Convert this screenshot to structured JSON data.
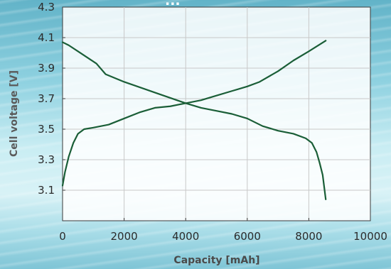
{
  "chart_data": {
    "type": "line",
    "title": "...",
    "xlabel": "Capacity [mAh]",
    "ylabel": "Cell voltage [V]",
    "xlim": [
      0,
      10000
    ],
    "ylim": [
      2.9,
      4.3
    ],
    "xticks": [
      0,
      2000,
      4000,
      6000,
      8000,
      10000
    ],
    "yticks": [
      3.1,
      3.3,
      3.5,
      3.7,
      3.9,
      4.1,
      4.3
    ],
    "grid": true,
    "series": [
      {
        "color": "#1a5e37",
        "points": [
          [
            0,
            4.07
          ],
          [
            200,
            4.05
          ],
          [
            500,
            4.01
          ],
          [
            800,
            3.97
          ],
          [
            1100,
            3.93
          ],
          [
            1400,
            3.86
          ],
          [
            2000,
            3.81
          ],
          [
            3000,
            3.74
          ],
          [
            4000,
            3.67
          ],
          [
            4500,
            3.64
          ],
          [
            5000,
            3.62
          ],
          [
            5500,
            3.6
          ],
          [
            6000,
            3.57
          ],
          [
            6500,
            3.52
          ],
          [
            7000,
            3.49
          ],
          [
            7500,
            3.47
          ],
          [
            7900,
            3.44
          ],
          [
            8100,
            3.41
          ],
          [
            8250,
            3.35
          ],
          [
            8350,
            3.28
          ],
          [
            8450,
            3.2
          ],
          [
            8500,
            3.12
          ],
          [
            8550,
            3.04
          ]
        ]
      },
      {
        "color": "#1a5e37",
        "points": [
          [
            0,
            3.13
          ],
          [
            80,
            3.22
          ],
          [
            200,
            3.32
          ],
          [
            350,
            3.41
          ],
          [
            500,
            3.47
          ],
          [
            700,
            3.5
          ],
          [
            1000,
            3.51
          ],
          [
            1500,
            3.53
          ],
          [
            2000,
            3.57
          ],
          [
            2500,
            3.61
          ],
          [
            3000,
            3.64
          ],
          [
            3500,
            3.65
          ],
          [
            4000,
            3.67
          ],
          [
            4500,
            3.69
          ],
          [
            5000,
            3.72
          ],
          [
            5500,
            3.75
          ],
          [
            6000,
            3.78
          ],
          [
            6400,
            3.81
          ],
          [
            7000,
            3.88
          ],
          [
            7500,
            3.95
          ],
          [
            8000,
            4.01
          ],
          [
            8550,
            4.08
          ]
        ]
      }
    ]
  }
}
